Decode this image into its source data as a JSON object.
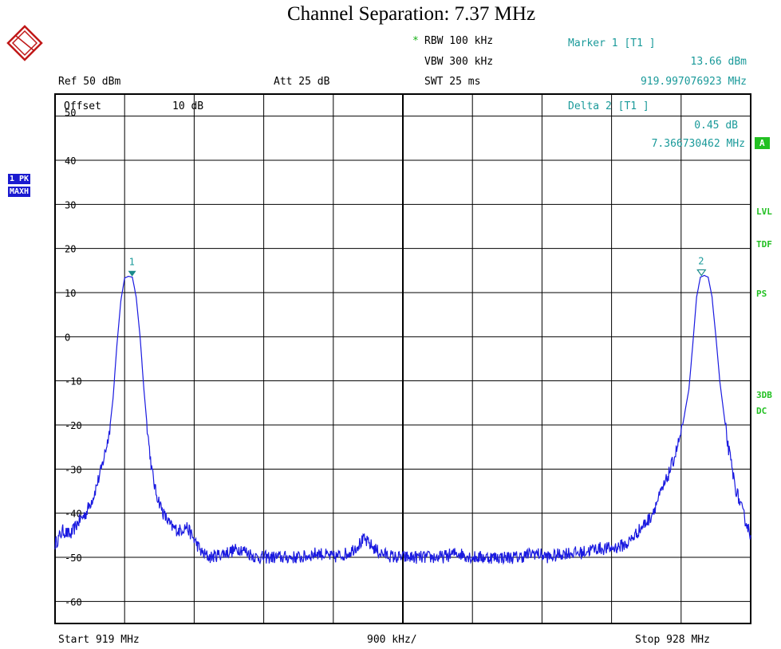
{
  "header": {
    "title": "Channel Separation: 7.37 MHz",
    "rbw_star": "*",
    "rbw": "RBW 100 kHz",
    "vbw": "VBW 300 kHz",
    "swt": "SWT 25 ms",
    "ref": "Ref   50 dBm",
    "att": "Att   25 dB"
  },
  "markers": {
    "marker1_title": "Marker 1 [T1 ]",
    "marker1_level": "13.66 dBm",
    "marker1_freq": "919.997076923 MHz",
    "delta2_title": "Delta 2 [T1 ]",
    "delta2_level": "0.45 dB",
    "delta2_freq": "7.366730462 MHz",
    "marker1_label": "1",
    "marker2_label": "2"
  },
  "side": {
    "trace_mode": "1 PK",
    "trace_hold": "MAXH",
    "a_label": "A",
    "lvl": "LVL",
    "tdf": "TDF",
    "ps": "PS",
    "db3": "3DB",
    "dc": "DC"
  },
  "footer": {
    "start": "Start  919 MHz",
    "span_per_div": "900 kHz/",
    "stop": "Stop  928 MHz"
  },
  "colors": {
    "trace": "#1a1ae0",
    "marker_text": "#1a9a9a",
    "side_status": "#22c022",
    "badge": "#1a1ad0"
  },
  "chart_data": {
    "type": "line",
    "title": "Channel Separation: 7.37 MHz",
    "x_range_mhz": [
      919,
      928
    ],
    "ylim": [
      -65,
      55
    ],
    "grid": true,
    "offset_label": "Offset",
    "offset_value": "10 dB",
    "y_ticks": [
      "50",
      "40",
      "30",
      "20",
      "10",
      "0",
      "-10",
      "-20",
      "-30",
      "-40",
      "-50",
      "-60"
    ],
    "series": [
      {
        "x_mhz": [
          919.0,
          919.1,
          919.2,
          919.3,
          919.4,
          919.5,
          919.6,
          919.7,
          919.75,
          919.8,
          919.85,
          919.9,
          919.95,
          920.0,
          920.05,
          920.1,
          920.15,
          920.2,
          920.25,
          920.3,
          920.4,
          920.5,
          920.6,
          920.7,
          920.8,
          920.9,
          921.0,
          921.2,
          921.4,
          921.6,
          921.8,
          922.0,
          922.2,
          922.4,
          922.6,
          922.8,
          923.0,
          923.2,
          923.4,
          923.6,
          923.8,
          924.0,
          924.2,
          924.4,
          924.6,
          924.8,
          925.0,
          925.2,
          925.4,
          925.6,
          925.8,
          926.0,
          926.2,
          926.4,
          926.5,
          926.6,
          926.7,
          926.8,
          926.9,
          927.0,
          927.1,
          927.2,
          927.25,
          927.3,
          927.35,
          927.4,
          927.45,
          927.5,
          927.55,
          927.6,
          927.7,
          927.8,
          927.9,
          928.0
        ],
        "level_dbm": [
          -47,
          -44,
          -45,
          -42,
          -40,
          -36,
          -30,
          -22,
          -14,
          -2,
          8,
          13.3,
          13.7,
          13.5,
          9,
          0,
          -12,
          -22,
          -30,
          -35,
          -40,
          -43,
          -44,
          -43,
          -46,
          -49,
          -50,
          -49,
          -48,
          -50,
          -50,
          -50,
          -50,
          -49,
          -50,
          -49,
          -46,
          -49,
          -50,
          -50,
          -50,
          -50,
          -49,
          -50,
          -50,
          -50,
          -50,
          -49,
          -50,
          -49,
          -49,
          -48,
          -48,
          -47,
          -45,
          -43,
          -41,
          -37,
          -33,
          -28,
          -22,
          -12,
          -2,
          9,
          13.5,
          13.9,
          13.5,
          9,
          0,
          -10,
          -24,
          -34,
          -40,
          -45
        ]
      }
    ]
  }
}
